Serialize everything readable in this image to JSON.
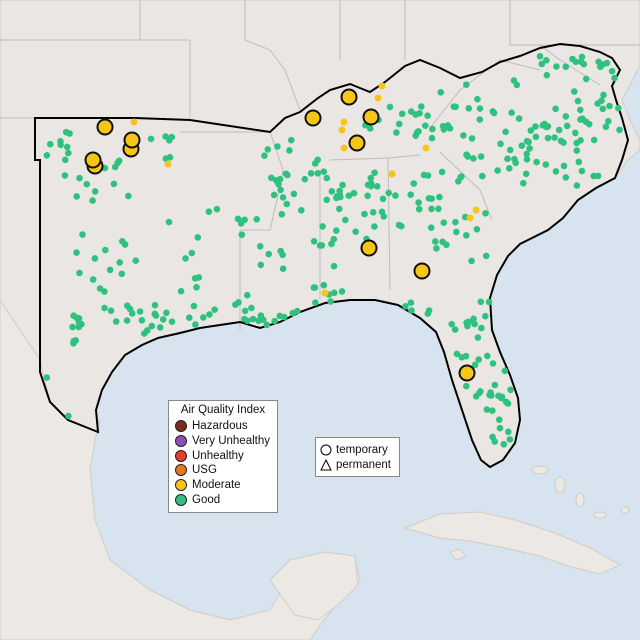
{
  "legend": {
    "title": "Air Quality Index",
    "categories": [
      {
        "label": "Hazardous",
        "color": "#7e2a1e"
      },
      {
        "label": "Very Unhealthy",
        "color": "#8f4fb5"
      },
      {
        "label": "Unhealthy",
        "color": "#e0402a"
      },
      {
        "label": "USG",
        "color": "#e67a1c"
      },
      {
        "label": "Moderate",
        "color": "#f5c518"
      },
      {
        "label": "Good",
        "color": "#2ec27e"
      }
    ]
  },
  "shape_legend": {
    "items": [
      {
        "label": "temporary",
        "shape": "circle-icon"
      },
      {
        "label": "permanent",
        "shape": "triangle-icon"
      }
    ]
  },
  "colors": {
    "water": "#d7e3ef",
    "land_us": "#e9e6e3",
    "land_mexico": "#ece9e4",
    "state_border": "#bdbdbd",
    "region_border": "#000000",
    "good": "#2ec27e",
    "moderate": "#f5c518"
  },
  "monitors": {
    "moderate_large_count": 12,
    "moderate_small_count": 12,
    "good_count": 420
  }
}
